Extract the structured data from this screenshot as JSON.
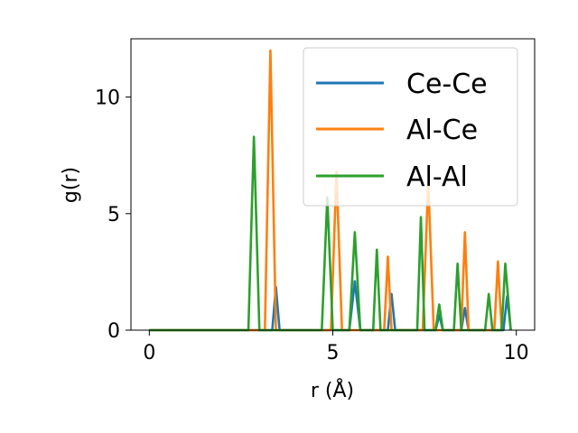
{
  "chart_data": {
    "type": "line",
    "xlabel": "r (Å)",
    "ylabel": "g(r)",
    "xlim": [
      -0.5,
      10.5
    ],
    "ylim": [
      0,
      12.5
    ],
    "xticks": [
      0,
      5,
      10
    ],
    "yticks": [
      0,
      5,
      10
    ],
    "grid": false,
    "legend_position": "top-right",
    "series": [
      {
        "name": "Ce-Ce",
        "color": "#1f77b4",
        "x": [
          0,
          3.35,
          3.45,
          3.55,
          5.45,
          5.6,
          5.75,
          6.5,
          6.6,
          6.7,
          7.8,
          7.9,
          8.0,
          8.5,
          8.6,
          8.7,
          9.65,
          9.75,
          9.85
        ],
        "y": [
          0,
          0,
          1.85,
          0,
          0,
          2.1,
          0,
          0,
          1.55,
          0,
          0,
          0.65,
          0,
          0,
          0.95,
          0,
          0,
          1.45,
          0
        ]
      },
      {
        "name": "Al-Ce",
        "color": "#ff7f0e",
        "x": [
          0,
          3.15,
          3.3,
          3.45,
          4.95,
          5.1,
          5.25,
          6.4,
          6.5,
          6.6,
          7.45,
          7.6,
          7.75,
          8.5,
          8.6,
          8.7,
          9.4,
          9.5,
          9.6
        ],
        "y": [
          0,
          0,
          12.0,
          0,
          0,
          6.8,
          0,
          0,
          3.15,
          0,
          0,
          6.4,
          0,
          0,
          4.2,
          0,
          0,
          2.95,
          0
        ]
      },
      {
        "name": "Al-Al",
        "color": "#2ca02c",
        "x": [
          0,
          2.7,
          2.85,
          3.0,
          4.7,
          4.85,
          5.0,
          5.45,
          5.6,
          5.75,
          6.1,
          6.2,
          6.3,
          7.3,
          7.4,
          7.5,
          7.8,
          7.9,
          8.0,
          8.3,
          8.4,
          8.5,
          9.15,
          9.25,
          9.35,
          9.6,
          9.7,
          9.85
        ],
        "y": [
          0,
          0,
          8.3,
          0,
          0,
          5.7,
          0,
          0,
          4.2,
          0,
          0,
          3.45,
          0,
          0,
          4.85,
          0,
          0,
          1.1,
          0,
          0,
          2.85,
          0,
          0,
          1.55,
          0,
          0,
          2.85,
          0
        ]
      }
    ]
  }
}
